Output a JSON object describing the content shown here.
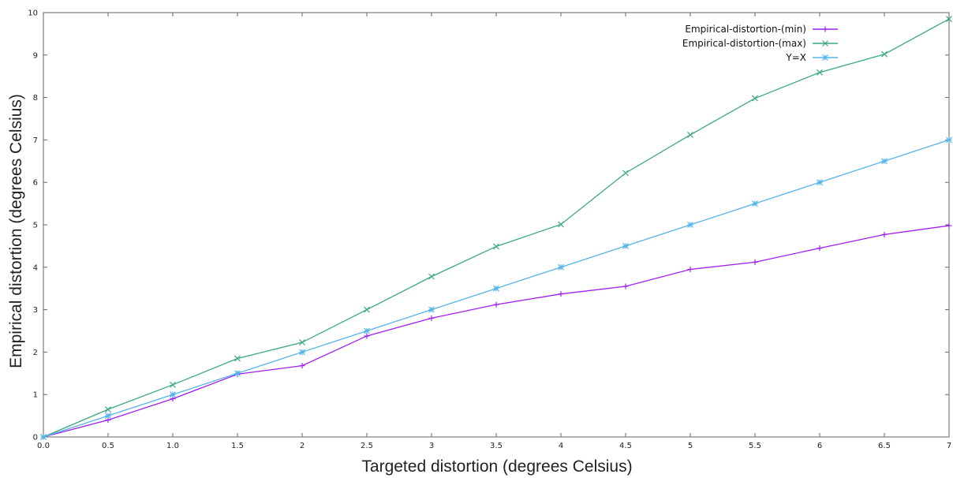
{
  "chart_data": {
    "type": "line",
    "xlabel": "Targeted distortion (degrees Celsius)",
    "ylabel": "Empirical distortion (degrees Celsius)",
    "xlim": [
      0,
      7
    ],
    "ylim": [
      0,
      10
    ],
    "x_tick_labels": [
      "0.0",
      "0.5",
      "1.0",
      "1.5",
      "2",
      "2.5",
      "3",
      "3.5",
      "4",
      "4.5",
      "5",
      "5.5",
      "6",
      "6.5",
      "7"
    ],
    "x_tick_values": [
      0,
      0.5,
      1,
      1.5,
      2,
      2.5,
      3,
      3.5,
      4,
      4.5,
      5,
      5.5,
      6,
      6.5,
      7
    ],
    "y_tick_labels": [
      "0",
      "1",
      "2",
      "3",
      "4",
      "5",
      "6",
      "7",
      "8",
      "9",
      "10"
    ],
    "y_tick_values": [
      0,
      1,
      2,
      3,
      4,
      5,
      6,
      7,
      8,
      9,
      10
    ],
    "grid": false,
    "legend_position": "top-right",
    "x": [
      0,
      0.5,
      1,
      1.5,
      2,
      2.5,
      3,
      3.5,
      4,
      4.5,
      5,
      5.5,
      6,
      6.5,
      7
    ],
    "series": [
      {
        "name": "Empirical-distortion-(min)",
        "color": "#a020f0",
        "marker": "plus",
        "values": [
          0,
          0.4,
          0.9,
          1.48,
          1.68,
          2.38,
          2.8,
          3.12,
          3.37,
          3.55,
          3.95,
          4.12,
          4.45,
          4.77,
          4.98
        ]
      },
      {
        "name": "Empirical-distortion-(max)",
        "color": "#3aa981",
        "marker": "cross",
        "values": [
          0,
          0.65,
          1.23,
          1.85,
          2.23,
          3.0,
          3.78,
          4.49,
          5.01,
          6.22,
          7.12,
          7.98,
          8.59,
          9.02,
          9.85
        ]
      },
      {
        "name": "Y=X",
        "color": "#56b4e9",
        "marker": "star",
        "values": [
          0,
          0.5,
          1,
          1.5,
          2,
          2.5,
          3,
          3.5,
          4,
          4.5,
          5,
          5.5,
          6,
          6.5,
          7
        ]
      }
    ]
  }
}
